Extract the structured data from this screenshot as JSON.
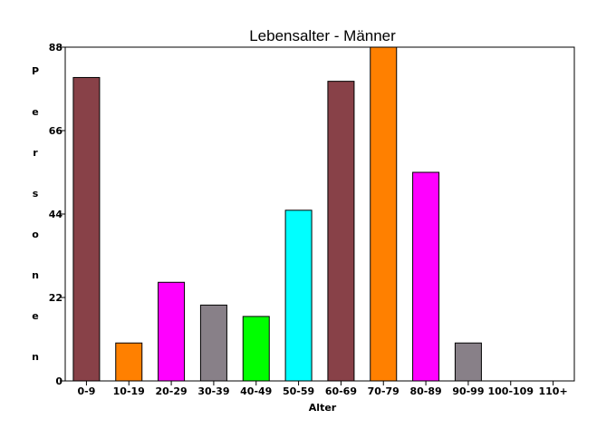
{
  "chart_data": {
    "type": "bar",
    "title": "Lebensalter - Männer",
    "xlabel": "Alter",
    "ylabel": "Personen",
    "ylabel_letters": [
      "P",
      "e",
      "r",
      "s",
      "o",
      "n",
      "e",
      "n"
    ],
    "categories": [
      "0-9",
      "10-19",
      "20-29",
      "30-39",
      "40-49",
      "50-59",
      "60-69",
      "70-79",
      "80-89",
      "90-99",
      "100-109",
      "110+"
    ],
    "values": [
      80,
      10,
      26,
      20,
      17,
      45,
      79,
      88,
      55,
      10,
      0,
      0
    ],
    "colors": [
      "#884148",
      "#ff8000",
      "#ff00ff",
      "#888088",
      "#00ff00",
      "#00ffff",
      "#884148",
      "#ff8000",
      "#ff00ff",
      "#888088",
      "#884148",
      "#ff8000"
    ],
    "yticks": [
      0,
      22,
      44,
      66,
      88
    ],
    "ylim": [
      0,
      88
    ],
    "grid": false,
    "legend": "none"
  }
}
